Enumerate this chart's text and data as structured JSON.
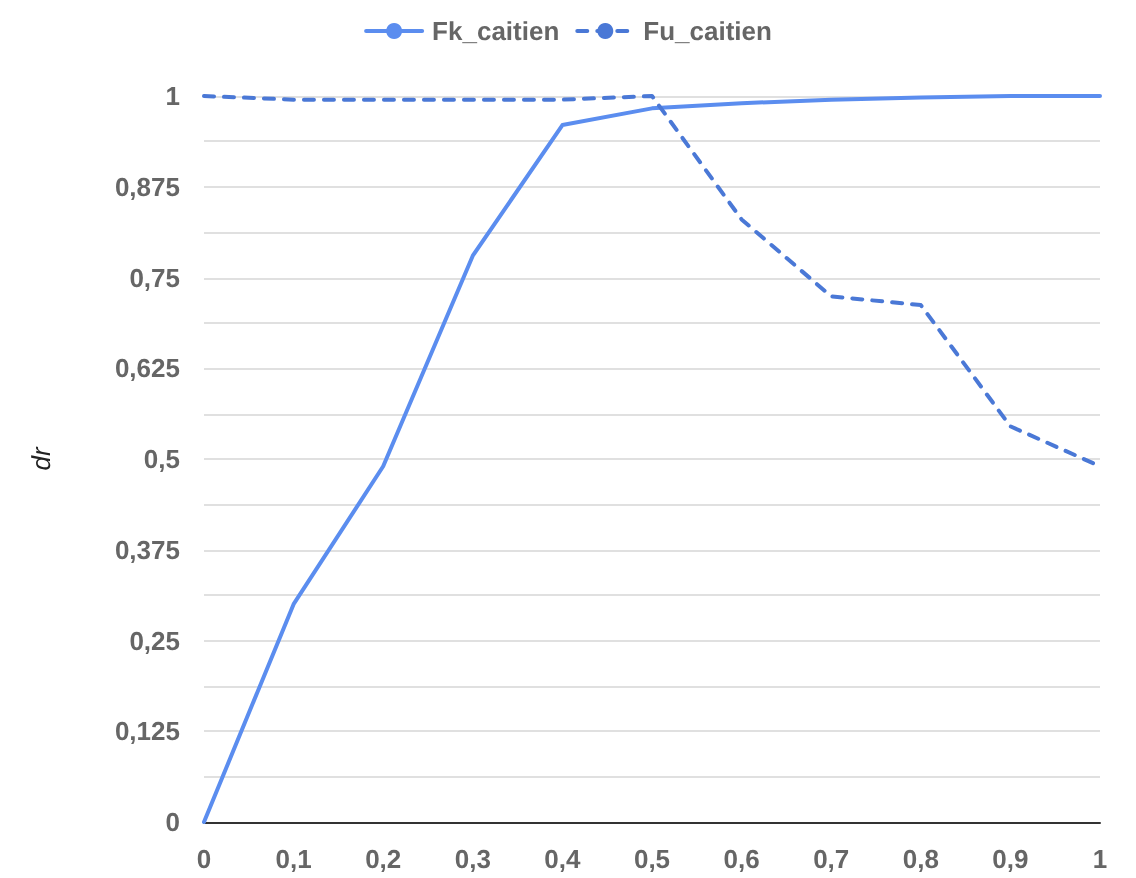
{
  "chart_data": {
    "type": "line",
    "ylabel": "dr",
    "legend": "top",
    "grid": "y",
    "line_style": "solid",
    "marker": "none",
    "x": [
      0,
      0.1,
      0.2,
      0.3,
      0.4,
      0.5,
      0.6,
      0.7,
      0.8,
      0.9,
      1
    ],
    "series": [
      {
        "name": "Fk_caitien",
        "color": "#5b8def",
        "values": [
          0,
          0.3,
          0.49,
          0.78,
          0.96,
          0.983,
          0.99,
          0.995,
          0.998,
          1,
          1
        ]
      },
      {
        "name": "Fu_caitien",
        "color": "#4a78d6",
        "line_style": "dashed",
        "values": [
          1,
          0.995,
          0.995,
          0.995,
          0.995,
          1,
          0.83,
          0.724,
          0.712,
          0.545,
          0.49
        ]
      }
    ],
    "xlim": [
      0,
      1
    ],
    "xticks": [
      0,
      {
        "value": 0.1,
        "label": "0,1"
      },
      {
        "value": 0.2,
        "label": "0,2"
      },
      {
        "value": 0.3,
        "label": "0,3"
      },
      {
        "value": 0.4,
        "label": "0,4"
      },
      {
        "value": 0.5,
        "label": "0,5"
      },
      {
        "value": 0.6,
        "label": "0,6"
      },
      {
        "value": 0.7,
        "label": "0,7"
      },
      {
        "value": 0.8,
        "label": "0,8"
      },
      {
        "value": 0.9,
        "label": "0,9"
      },
      1
    ],
    "ylim": [
      0,
      1
    ],
    "yticks": [
      0,
      {
        "value": 0.0625,
        "label": null
      },
      {
        "value": 0.125,
        "label": "0,125"
      },
      {
        "value": 0.1875,
        "label": null
      },
      {
        "value": 0.25,
        "label": "0,25"
      },
      {
        "value": 0.3125,
        "label": null
      },
      {
        "value": 0.375,
        "label": "0,375"
      },
      {
        "value": 0.4375,
        "label": null
      },
      {
        "value": 0.5,
        "label": "0,5"
      },
      {
        "value": 0.5625,
        "label": null
      },
      {
        "value": 0.625,
        "label": "0,625"
      },
      {
        "value": 0.6875,
        "label": null
      },
      {
        "value": 0.75,
        "label": "0,75"
      },
      {
        "value": 0.8125,
        "label": null
      },
      {
        "value": 0.875,
        "label": "0,875"
      },
      {
        "value": 0.9375,
        "label": null
      },
      1
    ]
  }
}
